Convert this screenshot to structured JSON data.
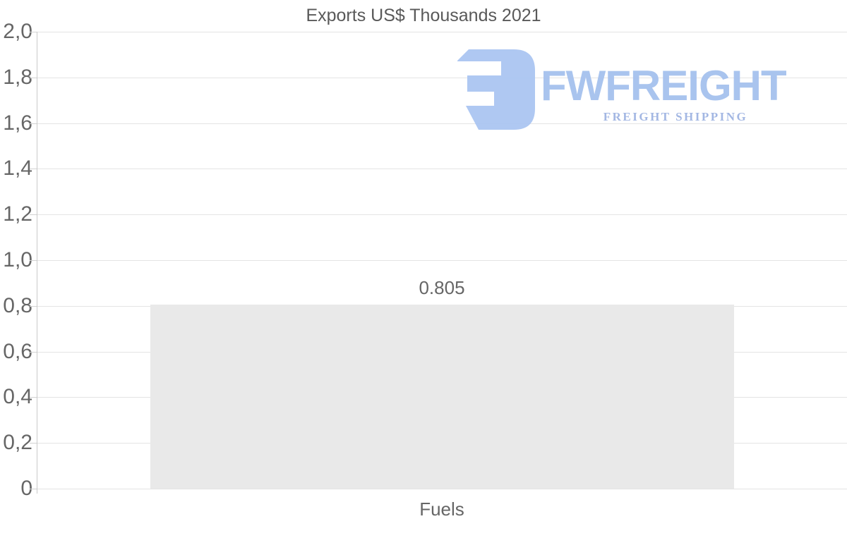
{
  "chart_data": {
    "type": "bar",
    "title": "Exports US$ Thousands 2021",
    "categories": [
      "Fuels"
    ],
    "values": [
      0.805
    ],
    "value_labels": [
      "0.805"
    ],
    "xlabel": "",
    "ylabel": "",
    "ylim": [
      0,
      2.0
    ],
    "y_tick_labels_top_to_bottom": [
      "2,0",
      "1,8",
      "1,6",
      "1,4",
      "1,2",
      "1,0",
      "0,8",
      "0,6",
      "0,4",
      "0,2",
      "0"
    ],
    "grid": "horizontal gridlines, light gray, full width",
    "legend_position": "none",
    "bar_color": "#e9e9e9",
    "text_color": "#666666",
    "gridline_color": "#e4e4e4",
    "axis_line_color": "#c9c9c9"
  },
  "watermark": {
    "brand": "FWFREIGHT",
    "tagline": "FREIGHT SHIPPING",
    "icon": "fwfreight-logo-icon",
    "icon_color": "#abc6f2",
    "brand_color": "#a5c1ee",
    "tagline_color": "#9fb4e2"
  }
}
